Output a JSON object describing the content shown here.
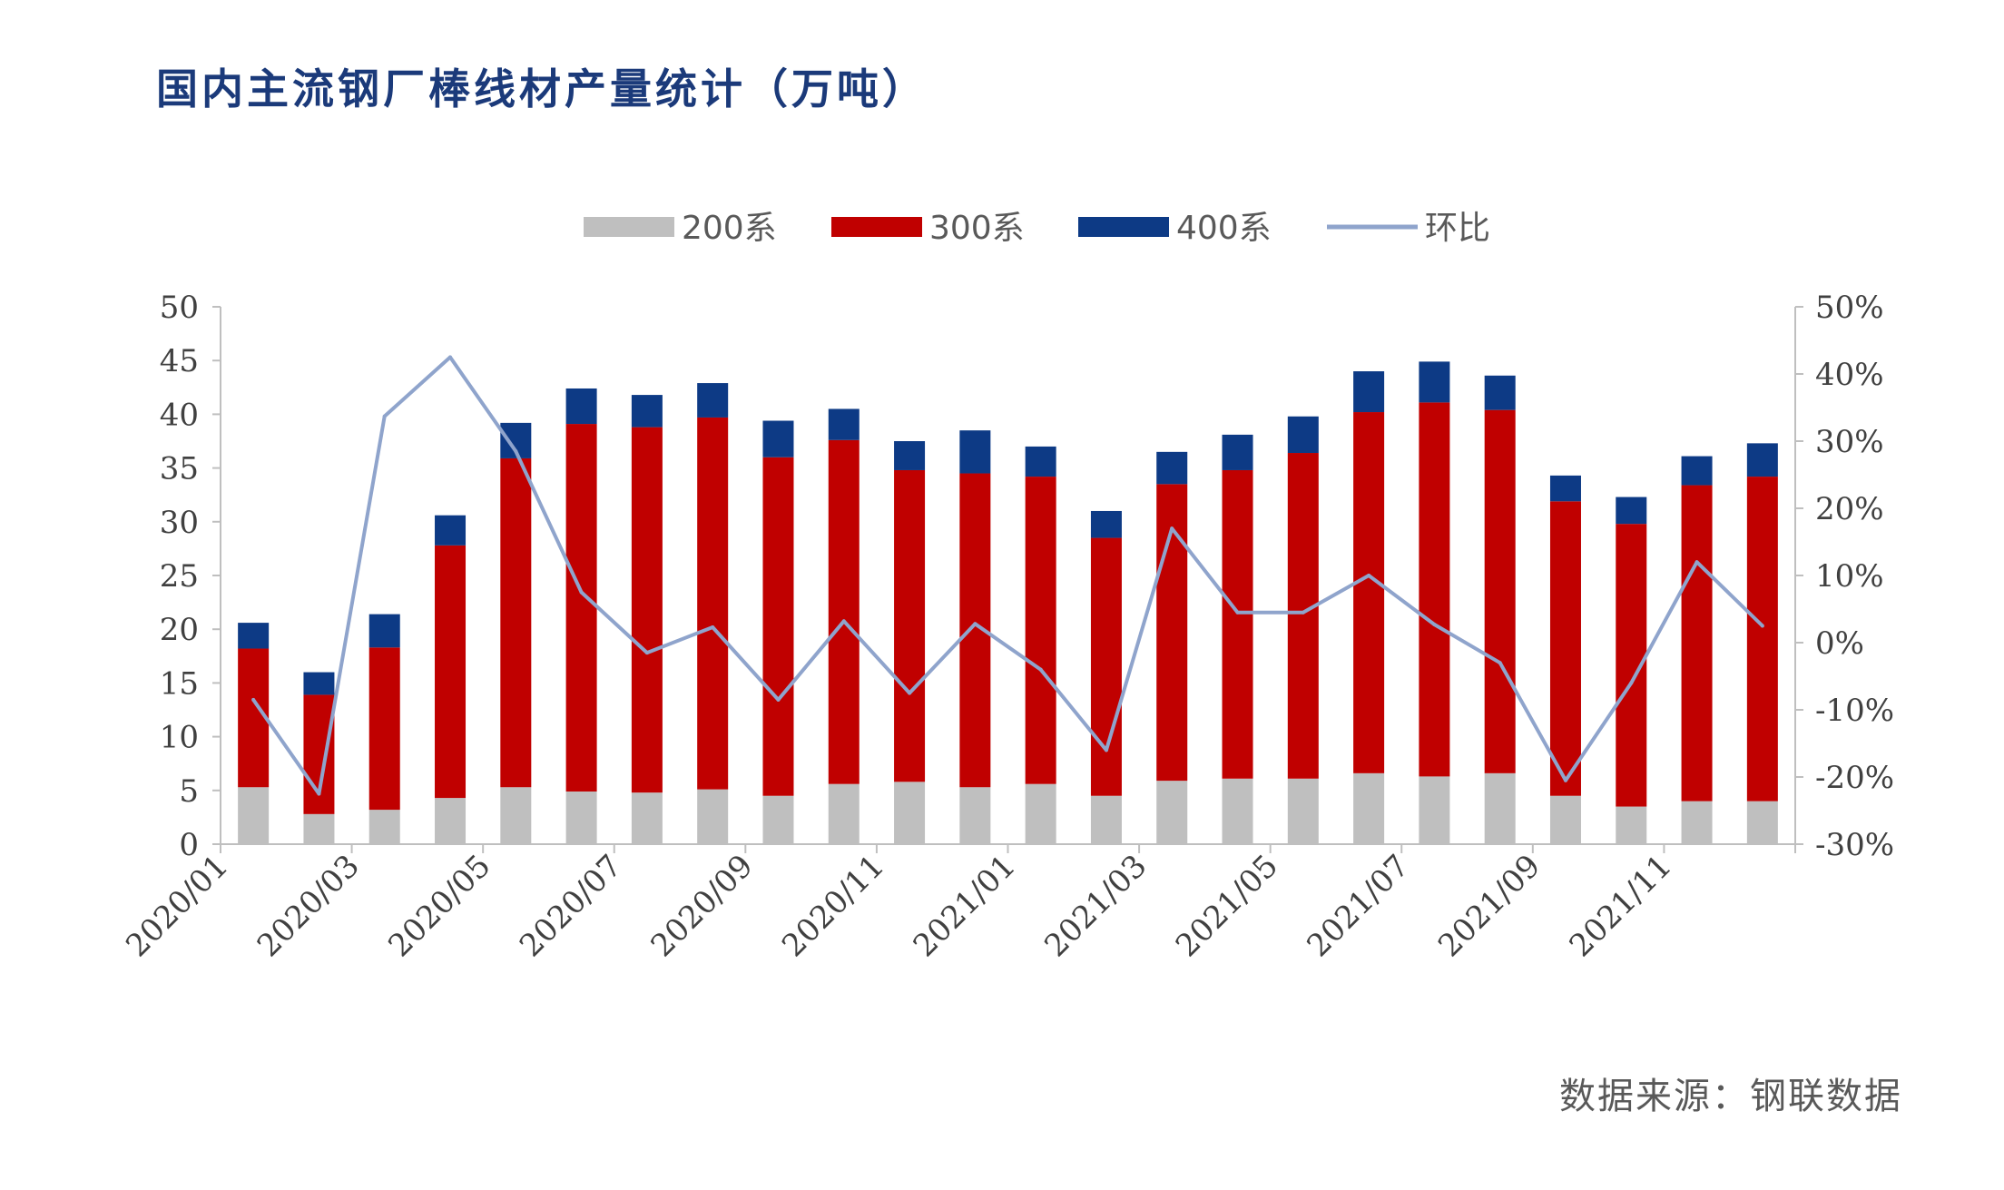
{
  "title": "国内主流钢厂棒线材产量统计（万吨）",
  "source": "数据来源：钢联数据",
  "colors": {
    "s200": "#bfbfbf",
    "s300": "#c00000",
    "s400": "#0d3a85",
    "ratio": "#8fa4cc",
    "axis": "#bfbfbf",
    "title": "#1b3a7a"
  },
  "chart_data": {
    "type": "bar",
    "stacked": true,
    "grid": false,
    "legend_position": "top",
    "categories": [
      "2020/01",
      "2020/02",
      "2020/03",
      "2020/04",
      "2020/05",
      "2020/06",
      "2020/07",
      "2020/08",
      "2020/09",
      "2020/10",
      "2020/11",
      "2020/12",
      "2021/01",
      "2021/02",
      "2021/03",
      "2021/04",
      "2021/05",
      "2021/06",
      "2021/07",
      "2021/08",
      "2021/09",
      "2021/10",
      "2021/11",
      "2021/12"
    ],
    "x_tick_labels": [
      "2020/01",
      "2020/03",
      "2020/05",
      "2020/07",
      "2020/09",
      "2020/11",
      "2021/01",
      "2021/03",
      "2021/05",
      "2021/07",
      "2021/09",
      "2021/11"
    ],
    "series": [
      {
        "name": "200系",
        "type": "bar",
        "axis": "left",
        "values": [
          5.3,
          2.8,
          3.2,
          4.3,
          5.3,
          4.9,
          4.8,
          5.1,
          4.5,
          5.6,
          5.8,
          5.3,
          5.6,
          4.5,
          5.9,
          6.1,
          6.1,
          6.6,
          6.3,
          6.6,
          4.5,
          3.5,
          4.0,
          4.0
        ]
      },
      {
        "name": "300系",
        "type": "bar",
        "axis": "left",
        "values": [
          12.9,
          11.1,
          15.1,
          23.5,
          30.6,
          34.2,
          34.0,
          34.6,
          31.5,
          32.0,
          29.0,
          29.2,
          28.6,
          24.0,
          27.6,
          28.7,
          30.3,
          33.6,
          34.8,
          33.8,
          27.4,
          26.3,
          29.4,
          30.2
        ]
      },
      {
        "name": "400系",
        "type": "bar",
        "axis": "left",
        "values": [
          2.4,
          2.1,
          3.1,
          2.8,
          3.3,
          3.3,
          3.0,
          3.2,
          3.4,
          2.9,
          2.7,
          4.0,
          2.8,
          2.5,
          3.0,
          3.3,
          3.4,
          3.8,
          3.8,
          3.2,
          2.4,
          2.5,
          2.7,
          3.1
        ]
      },
      {
        "name": "环比",
        "type": "line",
        "axis": "right",
        "values": [
          -8.5,
          -22.5,
          33.7,
          42.5,
          28.5,
          7.5,
          -1.5,
          2.3,
          -8.5,
          3.2,
          -7.5,
          2.8,
          -4.0,
          -16.0,
          17.0,
          4.5,
          4.5,
          10.0,
          2.7,
          -3.0,
          -20.5,
          -6.0,
          12.0,
          2.5
        ]
      }
    ],
    "y_left": {
      "ylim": [
        0,
        50
      ],
      "ticks": [
        "0",
        "5",
        "10",
        "15",
        "20",
        "25",
        "30",
        "35",
        "40",
        "45",
        "50"
      ]
    },
    "y_right": {
      "ylim": [
        -30,
        50
      ],
      "ticks": [
        "-30%",
        "-20%",
        "-10%",
        "0%",
        "10%",
        "20%",
        "30%",
        "40%",
        "50%"
      ]
    }
  }
}
